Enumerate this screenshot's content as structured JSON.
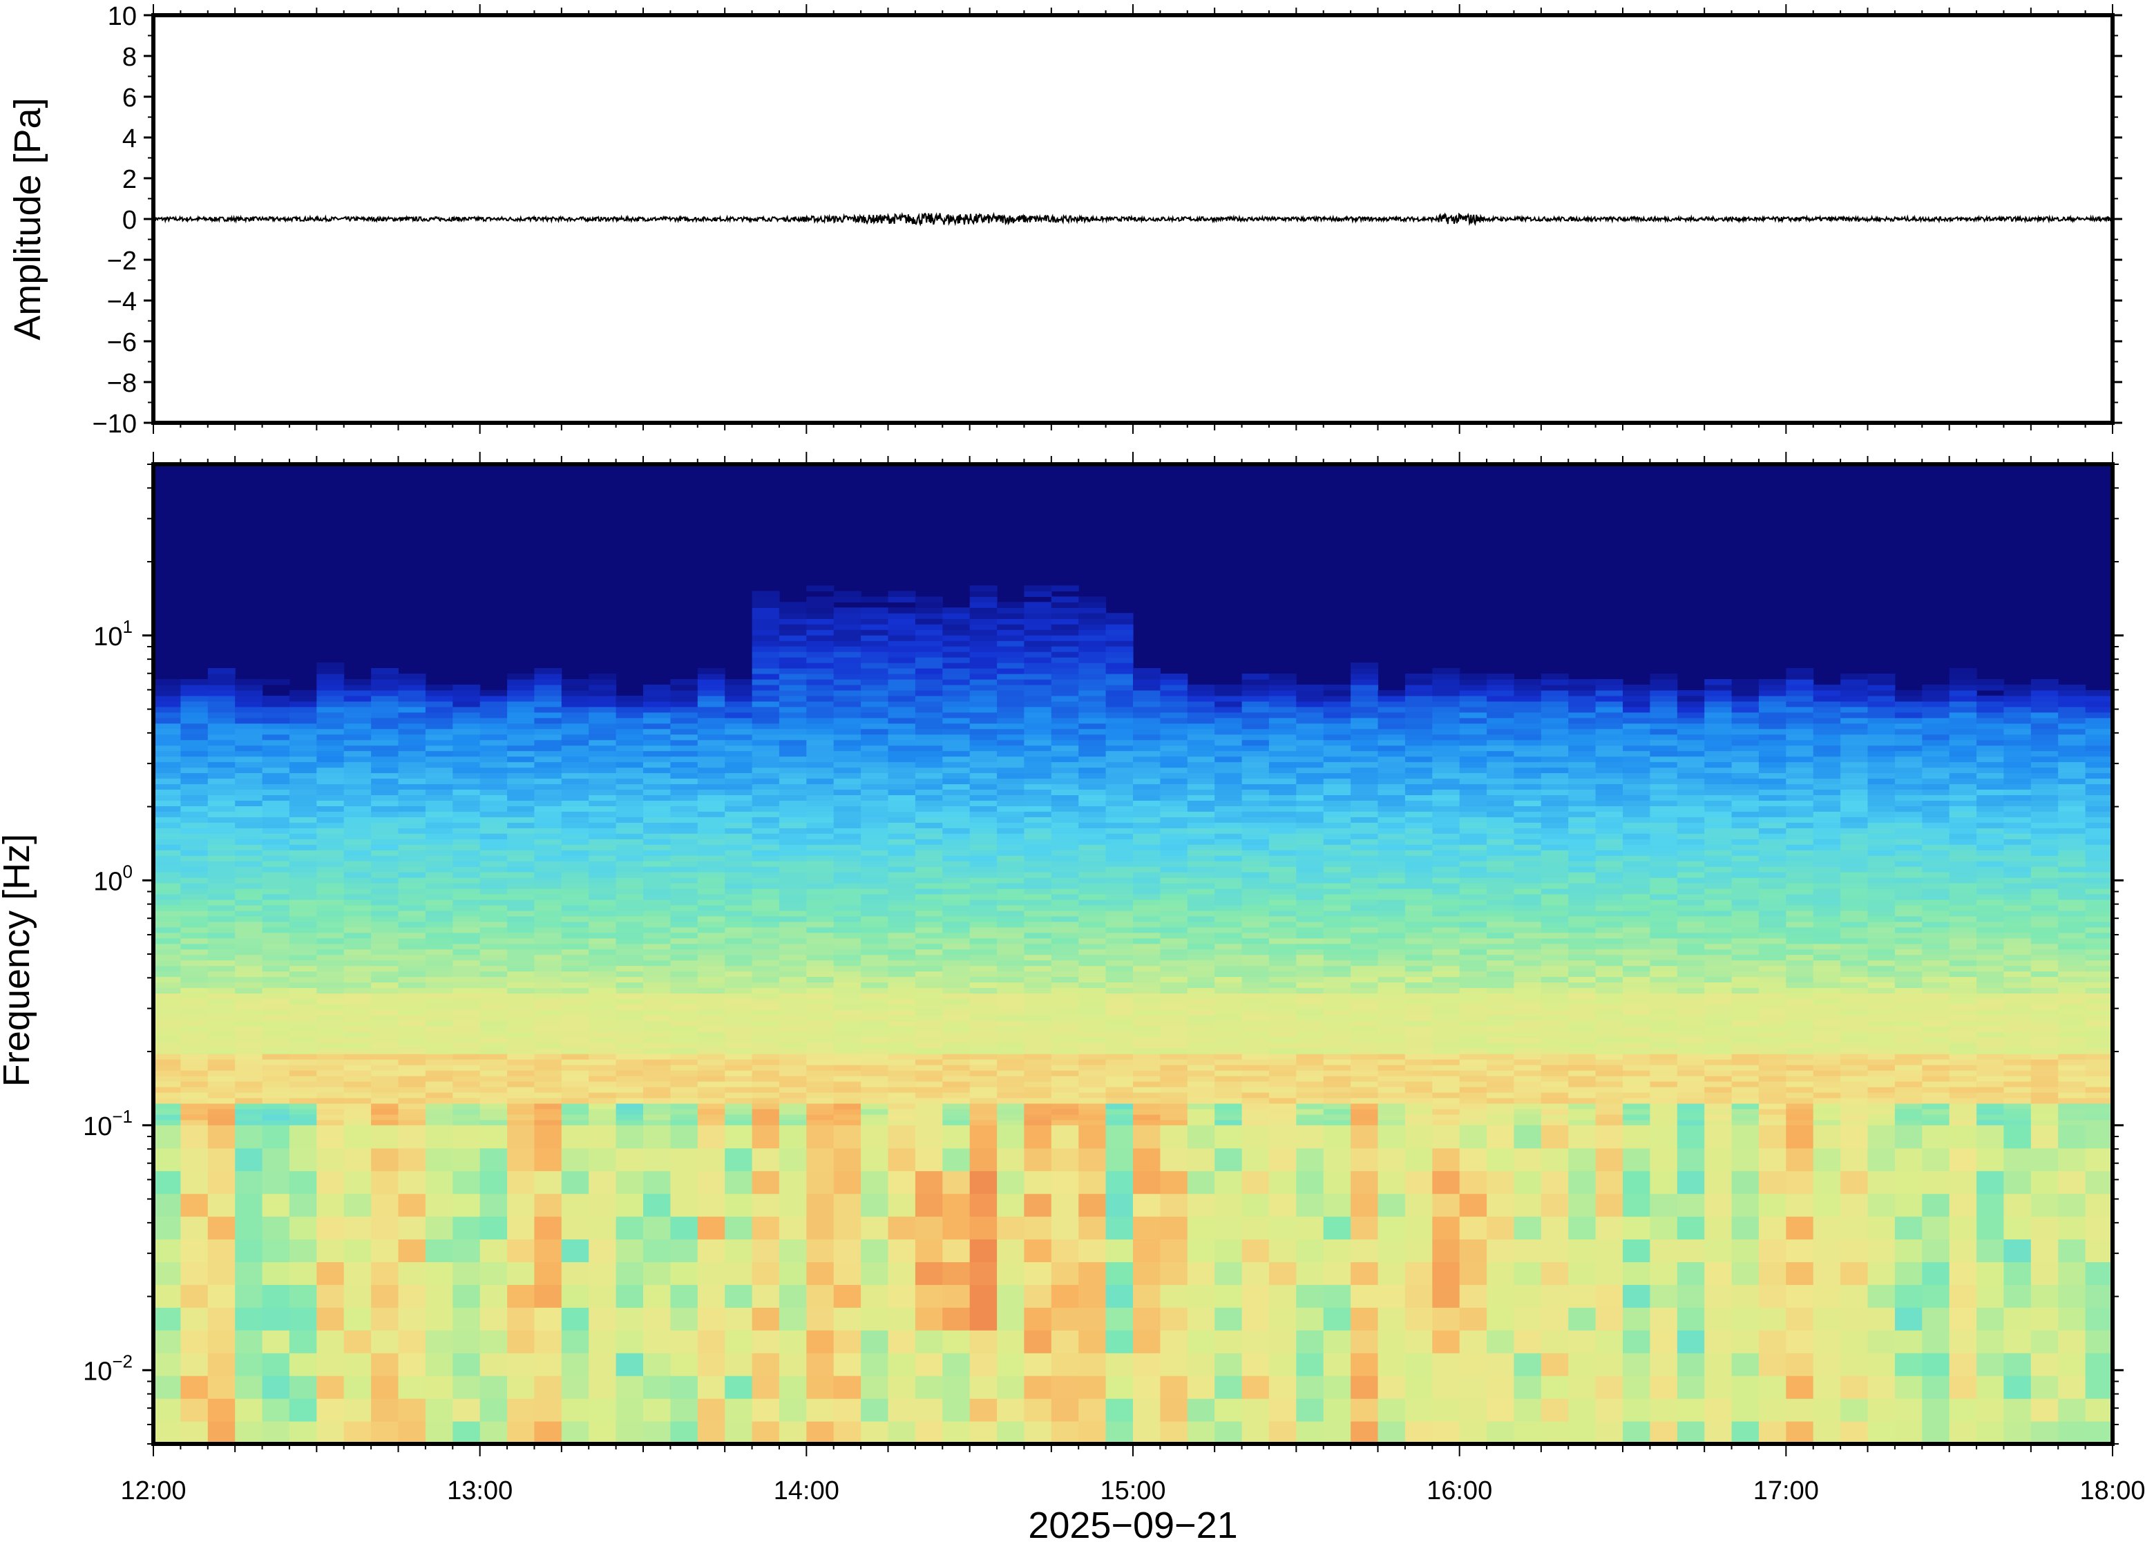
{
  "chart_data": [
    {
      "type": "line",
      "panel": "waveform",
      "ylabel": "Amplitude [Pa]",
      "ylim": [
        -10,
        10
      ],
      "yticks": [
        10,
        8,
        6,
        4,
        2,
        0,
        -2,
        -4,
        -6,
        -8,
        -10
      ],
      "ytick_labels": [
        "10",
        "8",
        "6",
        "4",
        "2",
        "0",
        "−2",
        "−4",
        "−6",
        "−8",
        "−10"
      ],
      "xlim": [
        "2025-09-21 12:00",
        "2025-09-21 18:00"
      ],
      "series": [
        {
          "x_start": "2025-09-21 12:00",
          "x_end": "2025-09-21 18:00",
          "baseline": 0,
          "typical_amplitude": 0.1,
          "max_amplitude": 0.3,
          "peak_time": "2025-09-21 14:25",
          "color": "#000000"
        }
      ]
    },
    {
      "type": "heatmap",
      "panel": "spectrogram",
      "ylabel": "Frequency [Hz]",
      "yscale": "log",
      "ylim": [
        0.005,
        50
      ],
      "yticks": [
        10,
        1,
        0.1,
        0.01
      ],
      "ytick_labels": [
        {
          "base": "10",
          "exp": "1"
        },
        {
          "base": "10",
          "exp": "0"
        },
        {
          "base": "10",
          "exp": "−1"
        },
        {
          "base": "10",
          "exp": "−2"
        }
      ],
      "xlabel": "2025−09−21",
      "xlim": [
        "12:00",
        "18:00"
      ],
      "xticks": [
        "12:00",
        "13:00",
        "14:00",
        "15:00",
        "16:00",
        "17:00",
        "18:00"
      ],
      "colormap": [
        "#0a0a78",
        "#1432d2",
        "#1e8cf0",
        "#50d2f0",
        "#7ee8b4",
        "#d8ee8c",
        "#f0e68c",
        "#f8b460",
        "#f08c50"
      ],
      "time_columns": 72,
      "notes_time_minutes_from_start": {
        "high_energy_window": [
          110,
          180
        ],
        "bright_low_freq": [
          145,
          150,
          240
        ]
      },
      "grid": false
    }
  ]
}
